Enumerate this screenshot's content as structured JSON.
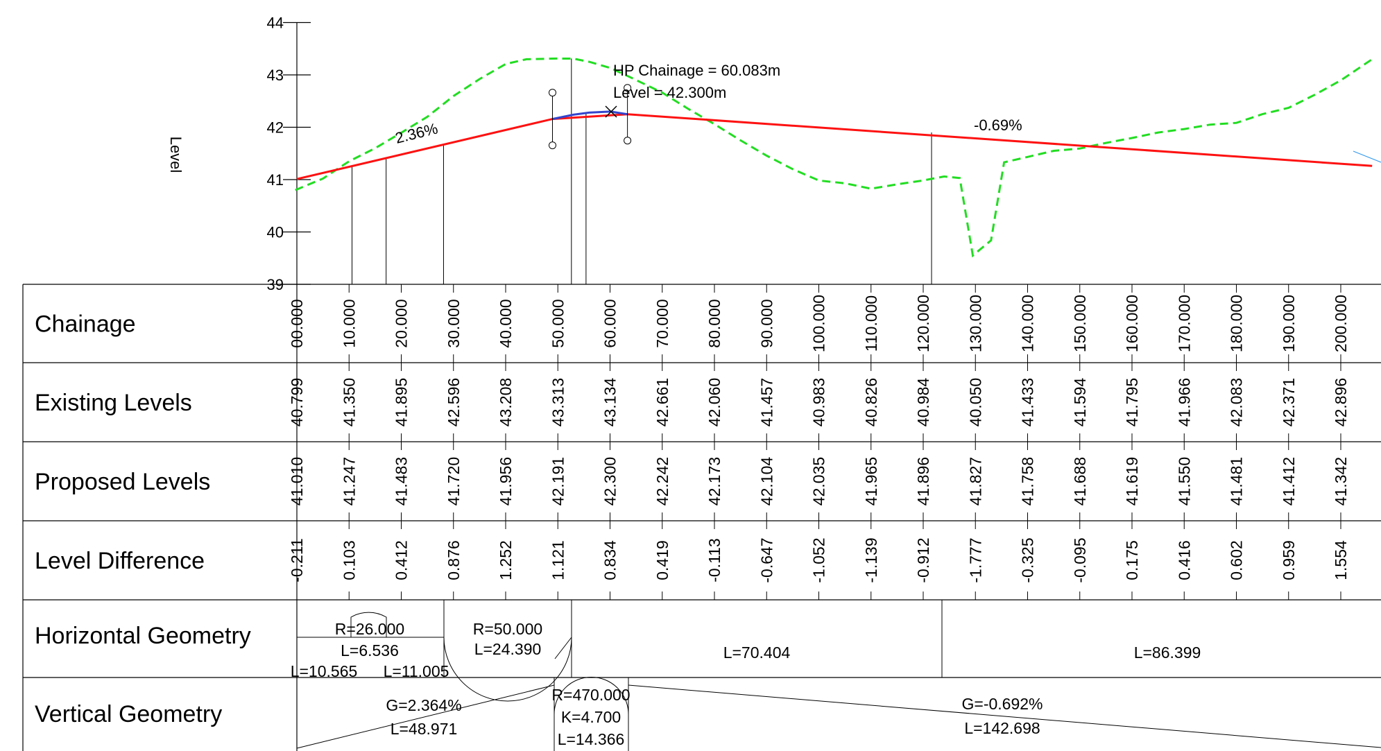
{
  "chart_data": {
    "type": "line",
    "ylabel": "Level",
    "ylim": [
      39,
      44
    ],
    "xlim": [
      0,
      200
    ],
    "y_ticks": [
      "39",
      "40",
      "41",
      "42",
      "43",
      "44"
    ],
    "series": [
      {
        "color": "#22dd22",
        "style": "dashed",
        "points": [
          [
            -0.3,
            40.8
          ],
          [
            5,
            41.02
          ],
          [
            10,
            41.35
          ],
          [
            15,
            41.6
          ],
          [
            20,
            41.895
          ],
          [
            25,
            42.2
          ],
          [
            30,
            42.596
          ],
          [
            35,
            42.92
          ],
          [
            40,
            43.208
          ],
          [
            44,
            43.3
          ],
          [
            50,
            43.313
          ],
          [
            53,
            43.31
          ],
          [
            56,
            43.25
          ],
          [
            60,
            43.134
          ],
          [
            64,
            42.95
          ],
          [
            70,
            42.661
          ],
          [
            75,
            42.35
          ],
          [
            80,
            42.06
          ],
          [
            85,
            41.75
          ],
          [
            90,
            41.457
          ],
          [
            95,
            41.2
          ],
          [
            100,
            40.983
          ],
          [
            105,
            40.93
          ],
          [
            110,
            40.826
          ],
          [
            115,
            40.91
          ],
          [
            120,
            40.984
          ],
          [
            124,
            41.06
          ],
          [
            127,
            41.03
          ],
          [
            129.5,
            39.55
          ],
          [
            133,
            39.84
          ],
          [
            135.5,
            41.33
          ],
          [
            140,
            41.433
          ],
          [
            145,
            41.55
          ],
          [
            150,
            41.594
          ],
          [
            155,
            41.7
          ],
          [
            160,
            41.795
          ],
          [
            165,
            41.9
          ],
          [
            170,
            41.966
          ],
          [
            175,
            42.05
          ],
          [
            180,
            42.083
          ],
          [
            185,
            42.25
          ],
          [
            190,
            42.371
          ],
          [
            195,
            42.62
          ],
          [
            200,
            42.896
          ],
          [
            206,
            43.3
          ]
        ]
      },
      {
        "color": "#ff1111",
        "style": "solid",
        "points": [
          [
            0,
            41.01
          ],
          [
            48.971,
            42.158
          ],
          [
            63.337,
            42.249
          ],
          [
            206,
            41.261
          ]
        ]
      },
      {
        "color": "#3344cc",
        "style": "solid",
        "points": [
          [
            48.971,
            42.158
          ],
          [
            53,
            42.24
          ],
          [
            56,
            42.28
          ],
          [
            60.083,
            42.3
          ],
          [
            63.337,
            42.249
          ]
        ]
      }
    ],
    "annotations": [
      {
        "text": "HP Chainage = 60.083m",
        "x": 60.083,
        "y": 42.3
      },
      {
        "text": "Level = 42.300m",
        "x": 60.083,
        "y": 42.3
      },
      {
        "text": "2.36%",
        "x": 20,
        "y": 41.5
      },
      {
        "text": "-0.69%",
        "x": 130,
        "y": 41.85
      }
    ],
    "band_rows": [
      {
        "label": "Chainage",
        "values": [
          "00.000",
          "10.000",
          "20.000",
          "30.000",
          "40.000",
          "50.000",
          "60.000",
          "70.000",
          "80.000",
          "90.000",
          "100.000",
          "110.000",
          "120.000",
          "130.000",
          "140.000",
          "150.000",
          "160.000",
          "170.000",
          "180.000",
          "190.000",
          "200.000"
        ]
      },
      {
        "label": "Existing Levels",
        "values": [
          "40.799",
          "41.350",
          "41.895",
          "42.596",
          "43.208",
          "43.313",
          "43.134",
          "42.661",
          "42.060",
          "41.457",
          "40.983",
          "40.826",
          "40.984",
          "40.050",
          "41.433",
          "41.594",
          "41.795",
          "41.966",
          "42.083",
          "42.371",
          "42.896"
        ]
      },
      {
        "label": "Proposed Levels",
        "values": [
          "41.010",
          "41.247",
          "41.483",
          "41.720",
          "41.956",
          "42.191",
          "42.300",
          "42.242",
          "42.173",
          "42.104",
          "42.035",
          "41.965",
          "41.896",
          "41.827",
          "41.758",
          "41.688",
          "41.619",
          "41.550",
          "41.481",
          "41.412",
          "41.342"
        ]
      },
      {
        "label": "Level Difference",
        "values": [
          "-0.211",
          "0.103",
          "0.412",
          "0.876",
          "1.252",
          "1.121",
          "0.834",
          "0.419",
          "-0.113",
          "-0.647",
          "-1.052",
          "-1.139",
          "-0.912",
          "-1.777",
          "-0.325",
          "-0.095",
          "0.175",
          "0.416",
          "0.602",
          "0.959",
          "1.554"
        ]
      }
    ],
    "horizontal_geometry": {
      "label": "Horizontal Geometry",
      "items": [
        {
          "text": "R=26.000"
        },
        {
          "text": "L=6.536"
        },
        {
          "text": "L=10.565"
        },
        {
          "text": "L=11.005"
        },
        {
          "text": "R=50.000"
        },
        {
          "text": "L=24.390"
        },
        {
          "text": "L=70.404"
        },
        {
          "text": "L=86.399"
        }
      ]
    },
    "vertical_geometry": {
      "label": "Vertical Geometry",
      "items": [
        {
          "text": "G=2.364%"
        },
        {
          "text": "L=48.971"
        },
        {
          "text": "R=470.000"
        },
        {
          "text": "K=4.700"
        },
        {
          "text": "L=14.366"
        },
        {
          "text": "G=-0.692%"
        },
        {
          "text": "L=142.698"
        }
      ]
    }
  }
}
